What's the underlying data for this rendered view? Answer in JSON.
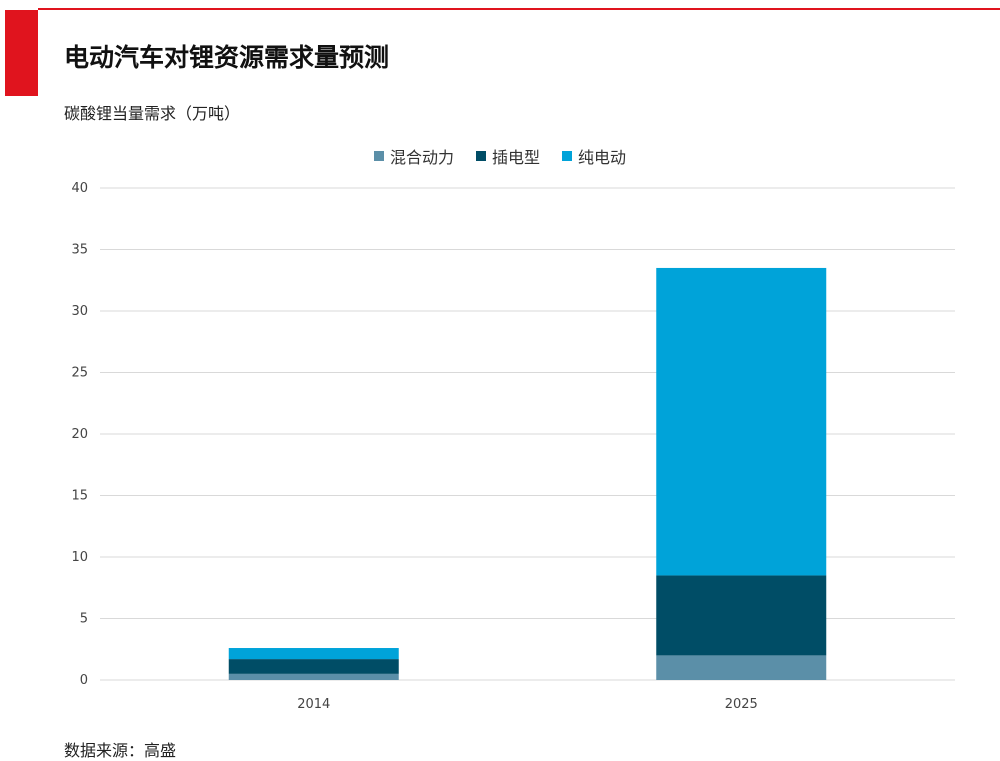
{
  "header": {
    "title": "电动汽车对锂资源需求量预测",
    "subtitle": "碳酸锂当量需求（万吨）"
  },
  "footer": {
    "source": "数据来源：高盛"
  },
  "colors": {
    "accent": "#e0141e",
    "grid": "#d9d9d9"
  },
  "chart_data": {
    "type": "bar",
    "stacked": true,
    "categories": [
      "2014",
      "2025"
    ],
    "series": [
      {
        "name": "混合动力",
        "color": "#5b8fa8",
        "values": [
          0.5,
          2.0
        ]
      },
      {
        "name": "插电型",
        "color": "#004d66",
        "values": [
          1.2,
          6.5
        ]
      },
      {
        "name": "纯电动",
        "color": "#00a3d9",
        "values": [
          0.9,
          25.0
        ]
      }
    ],
    "title": "电动汽车对锂资源需求量预测",
    "ylabel": "碳酸锂当量需求（万吨）",
    "ylim": [
      0,
      40
    ],
    "yticks": [
      0,
      5,
      10,
      15,
      20,
      25,
      30,
      35,
      40
    ],
    "grid": true,
    "legend_position": "top-center"
  }
}
